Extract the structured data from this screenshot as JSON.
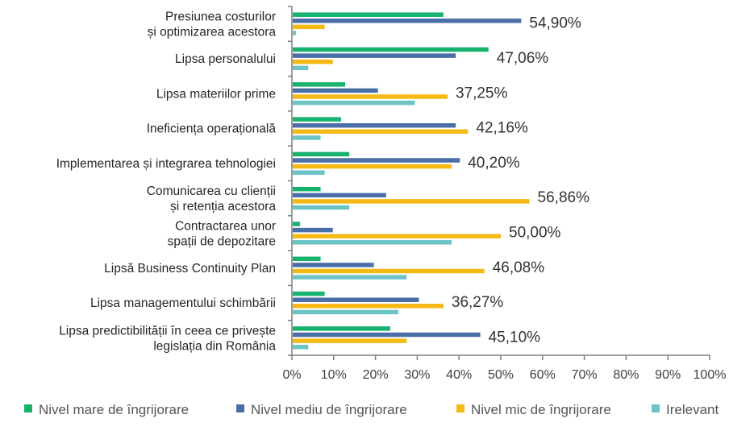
{
  "chart_data": {
    "type": "bar",
    "orientation": "horizontal",
    "categories": [
      [
        "Presiunea costurilor",
        "și optimizarea acestora"
      ],
      [
        "Lipsa personalului"
      ],
      [
        "Lipsa materiilor prime"
      ],
      [
        "Ineficiența operațională"
      ],
      [
        "Implementarea și integrarea tehnologiei"
      ],
      [
        "Comunicarea cu clienții",
        "și retenția acestora"
      ],
      [
        "Contractarea unor",
        "spații de depozitare"
      ],
      [
        "Lipsă Business Continuity Plan"
      ],
      [
        "Lipsa managementului schimbării"
      ],
      [
        "Lipsa predictibilității în ceea ce privește",
        "legislația din România"
      ]
    ],
    "series": [
      {
        "name": "Nivel mare de îngrijorare",
        "color": "#17b26e",
        "values": [
          36.27,
          47.06,
          12.75,
          11.76,
          13.73,
          6.86,
          1.96,
          6.86,
          7.84,
          23.53
        ]
      },
      {
        "name": "Nivel mediu de îngrijorare",
        "color": "#4a6fa8",
        "values": [
          54.9,
          39.22,
          20.59,
          39.22,
          40.2,
          22.55,
          9.8,
          19.61,
          30.39,
          45.1
        ]
      },
      {
        "name": "Nivel mic de îngrijorare",
        "color": "#f5b915",
        "values": [
          7.84,
          9.8,
          37.25,
          42.16,
          38.24,
          56.86,
          50.0,
          46.08,
          36.27,
          27.45
        ]
      },
      {
        "name": "Irelevant",
        "color": "#6cc4c6",
        "values": [
          0.98,
          3.92,
          29.41,
          6.86,
          7.84,
          13.73,
          38.24,
          27.45,
          25.49,
          3.92
        ]
      }
    ],
    "data_labels": [
      "54,90%",
      "47,06%",
      "37,25%",
      "42,16%",
      "40,20%",
      "56,86%",
      "50,00%",
      "46,08%",
      "36,27%",
      "45,10%"
    ],
    "xticks": [
      "0%",
      "10%",
      "20%",
      "30%",
      "40%",
      "50%",
      "60%",
      "70%",
      "80%",
      "90%",
      "100%"
    ],
    "xlim": [
      0,
      100
    ],
    "grid": false,
    "legend": "bottom",
    "title": "",
    "xlabel": "",
    "ylabel": ""
  }
}
